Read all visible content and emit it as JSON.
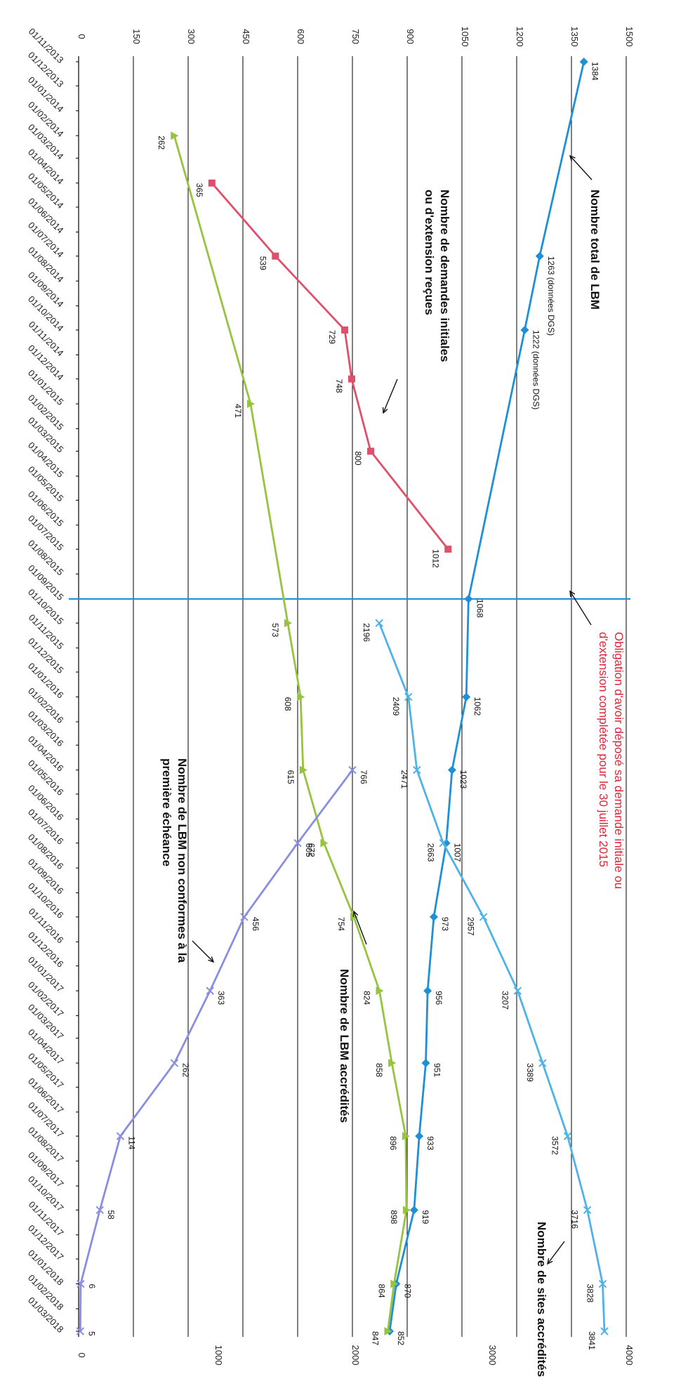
{
  "chart_data": {
    "type": "line",
    "orientation": "rotated 90 degrees clockwise (dates run top to bottom, values increase left to right)",
    "grid": true,
    "left_axis": {
      "range": [
        0,
        1500
      ],
      "ticks": [
        "0",
        "150",
        "300",
        "450",
        "600",
        "750",
        "900",
        "1050",
        "1200",
        "1350",
        "1500"
      ]
    },
    "right_axis": {
      "range": [
        0,
        4000
      ],
      "ticks": [
        "0",
        "1000",
        "2000",
        "3000",
        "4000"
      ]
    },
    "x_ticks": [
      "01/11/2013",
      "01/12/2013",
      "01/01/2014",
      "01/02/2014",
      "01/03/2014",
      "01/04/2014",
      "01/05/2014",
      "01/06/2014",
      "01/07/2014",
      "01/08/2014",
      "01/09/2014",
      "01/10/2014",
      "01/11/2014",
      "01/12/2014",
      "01/01/2015",
      "01/02/2015",
      "01/03/2015",
      "01/04/2015",
      "01/05/2015",
      "01/06/2015",
      "01/07/2015",
      "01/08/2015",
      "01/09/2015",
      "01/10/2015",
      "01/11/2015",
      "01/12/2015",
      "01/01/2016",
      "01/02/2016",
      "01/03/2016",
      "01/04/2016",
      "01/05/2016",
      "01/06/2016",
      "01/07/2016",
      "01/08/2016",
      "01/09/2016",
      "01/10/2016",
      "01/11/2016",
      "01/12/2016",
      "01/01/2017",
      "01/02/2017",
      "01/03/2017",
      "01/04/2017",
      "01/05/2017",
      "01/06/2017",
      "01/07/2017",
      "01/08/2017",
      "01/09/2017",
      "01/10/2017",
      "01/11/2017",
      "01/12/2017",
      "01/01/2018",
      "01/02/2018",
      "01/03/2018"
    ],
    "series": [
      {
        "key": "total_lbm",
        "axis": "left",
        "color": "#1f8fd6",
        "marker": "diamond",
        "points": [
          {
            "x": "2013-11-01",
            "y": 1384,
            "label": "1384"
          },
          {
            "x": "2014-07-01",
            "y": 1263,
            "label": "1263 (données DGS)"
          },
          {
            "x": "2014-10-01",
            "y": 1222,
            "label": "1222 (données DGS)"
          },
          {
            "x": "2015-09-01",
            "y": 1068,
            "label": "1068"
          },
          {
            "x": "2016-01-01",
            "y": 1062,
            "label": "1062"
          },
          {
            "x": "2016-04-01",
            "y": 1023,
            "label": "1023"
          },
          {
            "x": "2016-07-01",
            "y": 1007,
            "label": "1007"
          },
          {
            "x": "2016-10-01",
            "y": 973,
            "label": "973"
          },
          {
            "x": "2017-01-01",
            "y": 956,
            "label": "956"
          },
          {
            "x": "2017-04-01",
            "y": 951,
            "label": "951"
          },
          {
            "x": "2017-07-01",
            "y": 933,
            "label": "933"
          },
          {
            "x": "2017-10-01",
            "y": 919,
            "label": "919"
          },
          {
            "x": "2018-01-01",
            "y": 870,
            "label": "870"
          },
          {
            "x": "2018-03-01",
            "y": 852,
            "label": "852"
          }
        ]
      },
      {
        "key": "demandes",
        "axis": "left",
        "color": "#e0506a",
        "marker": "square",
        "points": [
          {
            "x": "2014-04-01",
            "y": 365,
            "label": "365"
          },
          {
            "x": "2014-07-01",
            "y": 539,
            "label": "539"
          },
          {
            "x": "2014-10-01",
            "y": 729,
            "label": "729"
          },
          {
            "x": "2014-12-01",
            "y": 748,
            "label": "748"
          },
          {
            "x": "2015-03-01",
            "y": 800,
            "label": "800"
          },
          {
            "x": "2015-07-01",
            "y": 1012,
            "label": "1012"
          }
        ]
      },
      {
        "key": "accredites",
        "axis": "left",
        "color": "#96c43e",
        "marker": "triangle",
        "points": [
          {
            "x": "2014-02-01",
            "y": 262,
            "label": "262"
          },
          {
            "x": "2015-01-01",
            "y": 471,
            "label": "471"
          },
          {
            "x": "2015-10-01",
            "y": 573,
            "label": "573"
          },
          {
            "x": "2016-01-01",
            "y": 608,
            "label": "608"
          },
          {
            "x": "2016-04-01",
            "y": 615,
            "label": "615"
          },
          {
            "x": "2016-07-01",
            "y": 672,
            "label": "672"
          },
          {
            "x": "2016-10-01",
            "y": 754,
            "label": "754"
          },
          {
            "x": "2017-01-01",
            "y": 824,
            "label": "824"
          },
          {
            "x": "2017-04-01",
            "y": 858,
            "label": "858"
          },
          {
            "x": "2017-07-01",
            "y": 896,
            "label": "896"
          },
          {
            "x": "2017-10-01",
            "y": 898,
            "label": "898"
          },
          {
            "x": "2018-01-01",
            "y": 864,
            "label": "864"
          },
          {
            "x": "2018-03-01",
            "y": 847,
            "label": "847"
          }
        ]
      },
      {
        "key": "sites",
        "axis": "right",
        "color": "#4fb3e8",
        "marker": "x",
        "points": [
          {
            "x": "2015-10-01",
            "y": 2196,
            "label": "2196"
          },
          {
            "x": "2016-01-01",
            "y": 2409,
            "label": "2409"
          },
          {
            "x": "2016-04-01",
            "y": 2471,
            "label": "2471"
          },
          {
            "x": "2016-07-01",
            "y": 2663,
            "label": "2663"
          },
          {
            "x": "2016-10-01",
            "y": 2957,
            "label": "2957"
          },
          {
            "x": "2017-01-01",
            "y": 3207,
            "label": "3207"
          },
          {
            "x": "2017-04-01",
            "y": 3389,
            "label": "3389"
          },
          {
            "x": "2017-07-01",
            "y": 3572,
            "label": "3572"
          },
          {
            "x": "2017-10-01",
            "y": 3716,
            "label": "3716"
          },
          {
            "x": "2018-01-01",
            "y": 3828,
            "label": "3828"
          },
          {
            "x": "2018-03-01",
            "y": 3841,
            "label": "3841"
          }
        ]
      },
      {
        "key": "non_conformes",
        "axis": "right",
        "color": "#8a8ee0",
        "marker": "x",
        "points": [
          {
            "x": "2016-04-01",
            "y": 2000,
            "label": "766"
          },
          {
            "x": "2016-07-01",
            "y": 1600,
            "label": "605"
          },
          {
            "x": "2016-10-01",
            "y": 1210,
            "label": "456"
          },
          {
            "x": "2017-01-01",
            "y": 960,
            "label": "363"
          },
          {
            "x": "2017-04-01",
            "y": 700,
            "label": "262"
          },
          {
            "x": "2017-07-01",
            "y": 305,
            "label": "114"
          },
          {
            "x": "2017-10-01",
            "y": 155,
            "label": "58"
          },
          {
            "x": "2018-01-01",
            "y": 15,
            "label": "6"
          },
          {
            "x": "2018-03-01",
            "y": 12,
            "label": "5"
          }
        ]
      }
    ],
    "reference_line": {
      "x": "2015-09-01",
      "color": "#1f8fd6"
    },
    "annotations": [
      {
        "key": "total_lbm",
        "lines": [
          "Nombre total de LBM"
        ],
        "color": "#111111"
      },
      {
        "key": "demandes",
        "lines": [
          "Nombre de demandes initiales",
          "ou d'extension reçues"
        ],
        "color": "#111111"
      },
      {
        "key": "obligation",
        "lines": [
          "Obligation d'avoir déposé sa demande initiale ou",
          "d'extension  complétée pour le 30 juillet 2015"
        ],
        "color": "#d8273a"
      },
      {
        "key": "sites",
        "lines": [
          "Nombre de sites accrédités"
        ],
        "color": "#111111"
      },
      {
        "key": "accredites",
        "lines": [
          "Nombre de LBM accrédités"
        ],
        "color": "#111111"
      },
      {
        "key": "non_conformes",
        "lines": [
          "Nombre de LBM non conformes à la",
          "première échéance"
        ],
        "color": "#111111"
      }
    ]
  }
}
